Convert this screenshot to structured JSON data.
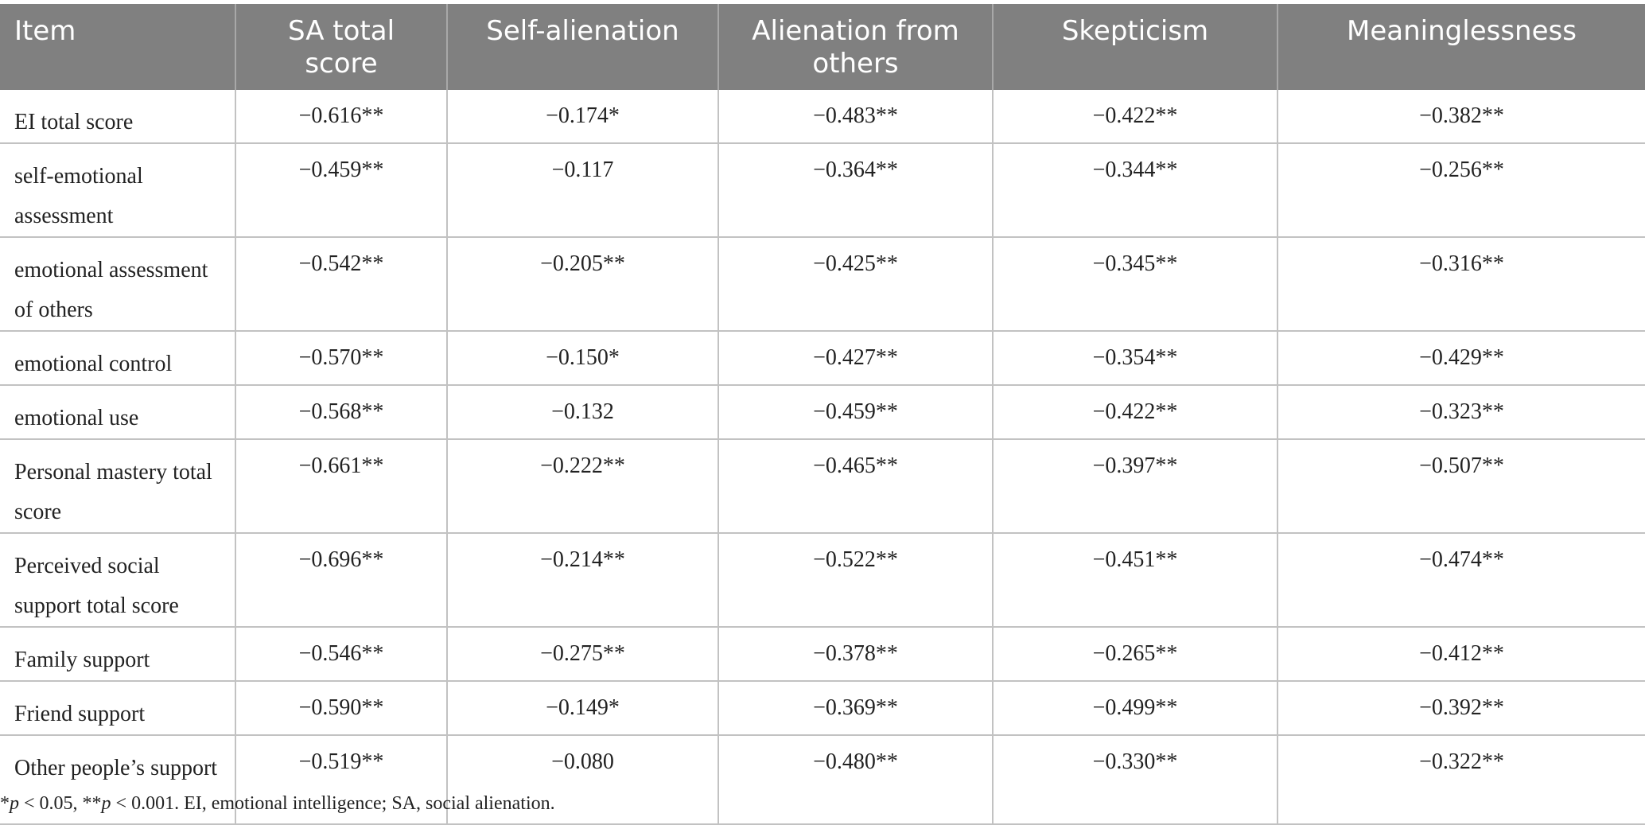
{
  "table": {
    "headers": [
      "Item",
      "SA total score",
      "Self-alienation",
      "Alienation from others",
      "Skepticism",
      "Meaninglessness"
    ],
    "rows": [
      {
        "item": "EI total score",
        "values": [
          "−0.616**",
          "−0.174*",
          "−0.483**",
          "−0.422**",
          "−0.382**"
        ]
      },
      {
        "item": "self-emotional assessment",
        "values": [
          "−0.459**",
          "−0.117",
          "−0.364**",
          "−0.344**",
          "−0.256**"
        ]
      },
      {
        "item": "emotional assessment of others",
        "values": [
          "−0.542**",
          "−0.205**",
          "−0.425**",
          "−0.345**",
          "−0.316**"
        ]
      },
      {
        "item": "emotional control",
        "values": [
          "−0.570**",
          "−0.150*",
          "−0.427**",
          "−0.354**",
          "−0.429**"
        ]
      },
      {
        "item": "emotional use",
        "values": [
          "−0.568**",
          "−0.132",
          "−0.459**",
          "−0.422**",
          "−0.323**"
        ]
      },
      {
        "item": "Personal mastery total score",
        "values": [
          "−0.661**",
          "−0.222**",
          "−0.465**",
          "−0.397**",
          "−0.507**"
        ]
      },
      {
        "item": "Perceived social support total score",
        "values": [
          "−0.696**",
          "−0.214**",
          "−0.522**",
          "−0.451**",
          "−0.474**"
        ]
      },
      {
        "item": "Family support",
        "values": [
          "−0.546**",
          "−0.275**",
          "−0.378**",
          "−0.265**",
          "−0.412**"
        ]
      },
      {
        "item": "Friend support",
        "values": [
          "−0.590**",
          "−0.149*",
          "−0.369**",
          "−0.499**",
          "−0.392**"
        ]
      },
      {
        "item": "Other people’s support",
        "values": [
          "−0.519**",
          "−0.080",
          "−0.480**",
          "−0.330**",
          "−0.322**"
        ]
      }
    ]
  },
  "footnote": {
    "part1": "*",
    "p1": "p",
    "part2": " < 0.05, **",
    "p2": "p",
    "part3": " < 0.001. EI, emotional intelligence; SA, social alienation."
  }
}
